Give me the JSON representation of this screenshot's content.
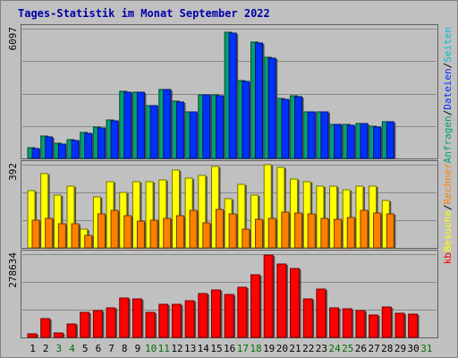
{
  "title": "Tages-Statistik im Monat September 2022",
  "colors": {
    "background": "#c0c0c0",
    "title": "#0000aa",
    "panel_border": "#606060",
    "grid": "#888888",
    "anfragen": "#00a070",
    "dateien": "#0030ff",
    "seiten": "#00c0d8",
    "besuche": "#ffff00",
    "rechner": "#ff8000",
    "kb": "#ff0000",
    "weekday_label": "#000000",
    "weekend_label": "#007000"
  },
  "chart_data": [
    {
      "type": "bar",
      "name": "hits-files",
      "max_label": "6097",
      "ylim": [
        0,
        6097
      ],
      "right_label_parts": [
        {
          "text": "Anfragen",
          "color": "#00a070"
        },
        {
          "text": "/",
          "color": "#000000"
        },
        {
          "text": "Dateien",
          "color": "#0030ff"
        },
        {
          "text": "/",
          "color": "#000000"
        },
        {
          "text": "Seiten",
          "color": "#00c0d8"
        }
      ],
      "series": [
        {
          "name": "Anfragen",
          "color": "#00a070",
          "values": [
            500,
            1050,
            700,
            890,
            1200,
            1480,
            1800,
            3150,
            3120,
            2500,
            3250,
            2700,
            2200,
            3000,
            2980,
            5920,
            3650,
            5450,
            4750,
            2800,
            2950,
            2200,
            2200,
            1600,
            1580,
            1650,
            1500,
            1730,
            0,
            0
          ]
        },
        {
          "name": "Dateien",
          "color": "#0030ff",
          "values": [
            480,
            1020,
            680,
            860,
            1170,
            1450,
            1770,
            3120,
            3100,
            2480,
            3220,
            2670,
            2170,
            2970,
            2950,
            5900,
            3620,
            5420,
            4720,
            2780,
            2920,
            2180,
            2170,
            1580,
            1560,
            1630,
            1480,
            1710,
            0,
            0
          ]
        }
      ]
    },
    {
      "type": "bar",
      "name": "visits-hosts",
      "max_label": "392",
      "ylim": [
        0,
        392
      ],
      "right_label_parts": [
        {
          "text": "Besuche",
          "color": "#ffff00"
        },
        {
          "text": "/",
          "color": "#000000"
        },
        {
          "text": "Rechner",
          "color": "#ff8000"
        }
      ],
      "series": [
        {
          "name": "Besuche",
          "color": "#ffff00",
          "values": [
            270,
            350,
            250,
            290,
            90,
            240,
            310,
            260,
            310,
            310,
            320,
            365,
            330,
            340,
            385,
            230,
            300,
            250,
            390,
            380,
            325,
            310,
            290,
            290,
            275,
            290,
            290,
            225,
            0,
            0
          ]
        },
        {
          "name": "Rechner",
          "color": "#ff8000",
          "values": [
            130,
            140,
            115,
            115,
            60,
            160,
            175,
            150,
            125,
            130,
            140,
            150,
            175,
            120,
            180,
            160,
            90,
            135,
            140,
            170,
            165,
            160,
            140,
            135,
            145,
            175,
            165,
            160,
            0,
            0
          ]
        }
      ]
    },
    {
      "type": "bar",
      "name": "kb",
      "max_label": "278634",
      "ylim": [
        0,
        278634
      ],
      "right_label_parts": [
        {
          "text": "kb",
          "color": "#ff0000"
        }
      ],
      "series": [
        {
          "name": "kb",
          "color": "#ff0000",
          "values": [
            13000,
            62000,
            14000,
            45000,
            84000,
            90000,
            100000,
            131000,
            130000,
            85000,
            110000,
            110000,
            122000,
            147000,
            160000,
            143000,
            167000,
            209000,
            275000,
            245000,
            232000,
            130000,
            163000,
            100000,
            97000,
            90000,
            75000,
            103000,
            82000,
            78000,
            0
          ]
        }
      ]
    }
  ],
  "x_labels": [
    "1",
    "2",
    "3",
    "4",
    "5",
    "6",
    "7",
    "8",
    "9",
    "10",
    "11",
    "12",
    "13",
    "14",
    "15",
    "16",
    "17",
    "18",
    "19",
    "20",
    "21",
    "22",
    "23",
    "24",
    "25",
    "26",
    "27",
    "28",
    "29",
    "30",
    "31"
  ],
  "weekend_days": [
    3,
    4,
    10,
    11,
    17,
    18,
    24,
    25,
    31
  ]
}
